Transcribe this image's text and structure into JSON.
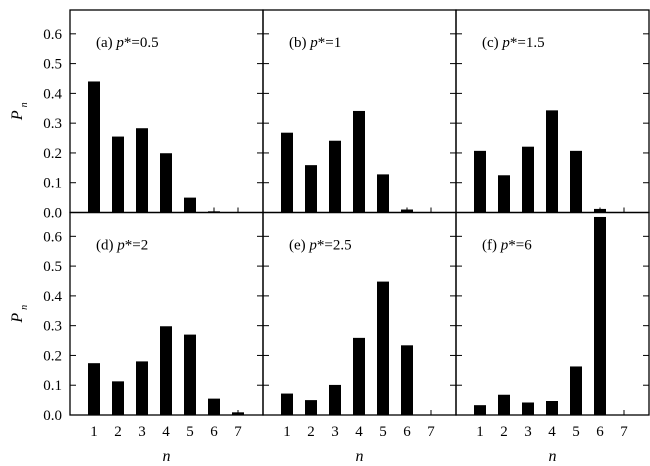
{
  "chart_data": {
    "type": "bar",
    "layout": "3 columns x 2 rows, shared axes",
    "categories": [
      "1",
      "2",
      "3",
      "4",
      "5",
      "6",
      "7"
    ],
    "ylim": [
      0,
      0.68
    ],
    "yticks": [
      "0.0",
      "0.1",
      "0.2",
      "0.3",
      "0.4",
      "0.5",
      "0.6"
    ],
    "xlabel": "n",
    "ylabel": {
      "main": "P",
      "subscript": "n"
    },
    "bar_color": "#000000",
    "panels": [
      {
        "label": "(a) p*=0.5",
        "label_parts": [
          "(a) ",
          "p",
          "*=0.5"
        ],
        "values": [
          0.44,
          0.255,
          0.283,
          0.199,
          0.05,
          0.004,
          0.0
        ]
      },
      {
        "label": "(b) p*=1",
        "label_parts": [
          "(b) ",
          "p",
          "*=1"
        ],
        "values": [
          0.268,
          0.159,
          0.241,
          0.341,
          0.128,
          0.01,
          0.0
        ]
      },
      {
        "label": "(c) p*=1.5",
        "label_parts": [
          "(c) ",
          "p",
          "*=1.5"
        ],
        "values": [
          0.207,
          0.125,
          0.221,
          0.343,
          0.207,
          0.012,
          0.0
        ]
      },
      {
        "label": "(d) p*=2",
        "label_parts": [
          "(d) ",
          "p",
          "*=2"
        ],
        "values": [
          0.174,
          0.113,
          0.18,
          0.298,
          0.27,
          0.055,
          0.009
        ]
      },
      {
        "label": "(e) p*=2.5",
        "label_parts": [
          "(e) ",
          "p",
          "*=2.5"
        ],
        "values": [
          0.072,
          0.05,
          0.101,
          0.259,
          0.448,
          0.234,
          0.0
        ]
      },
      {
        "label": "(f) p*=6",
        "label_parts": [
          "(f) ",
          "p",
          "*=6"
        ],
        "values": [
          0.033,
          0.068,
          0.042,
          0.047,
          0.163,
          0.665,
          0.0
        ]
      }
    ]
  }
}
